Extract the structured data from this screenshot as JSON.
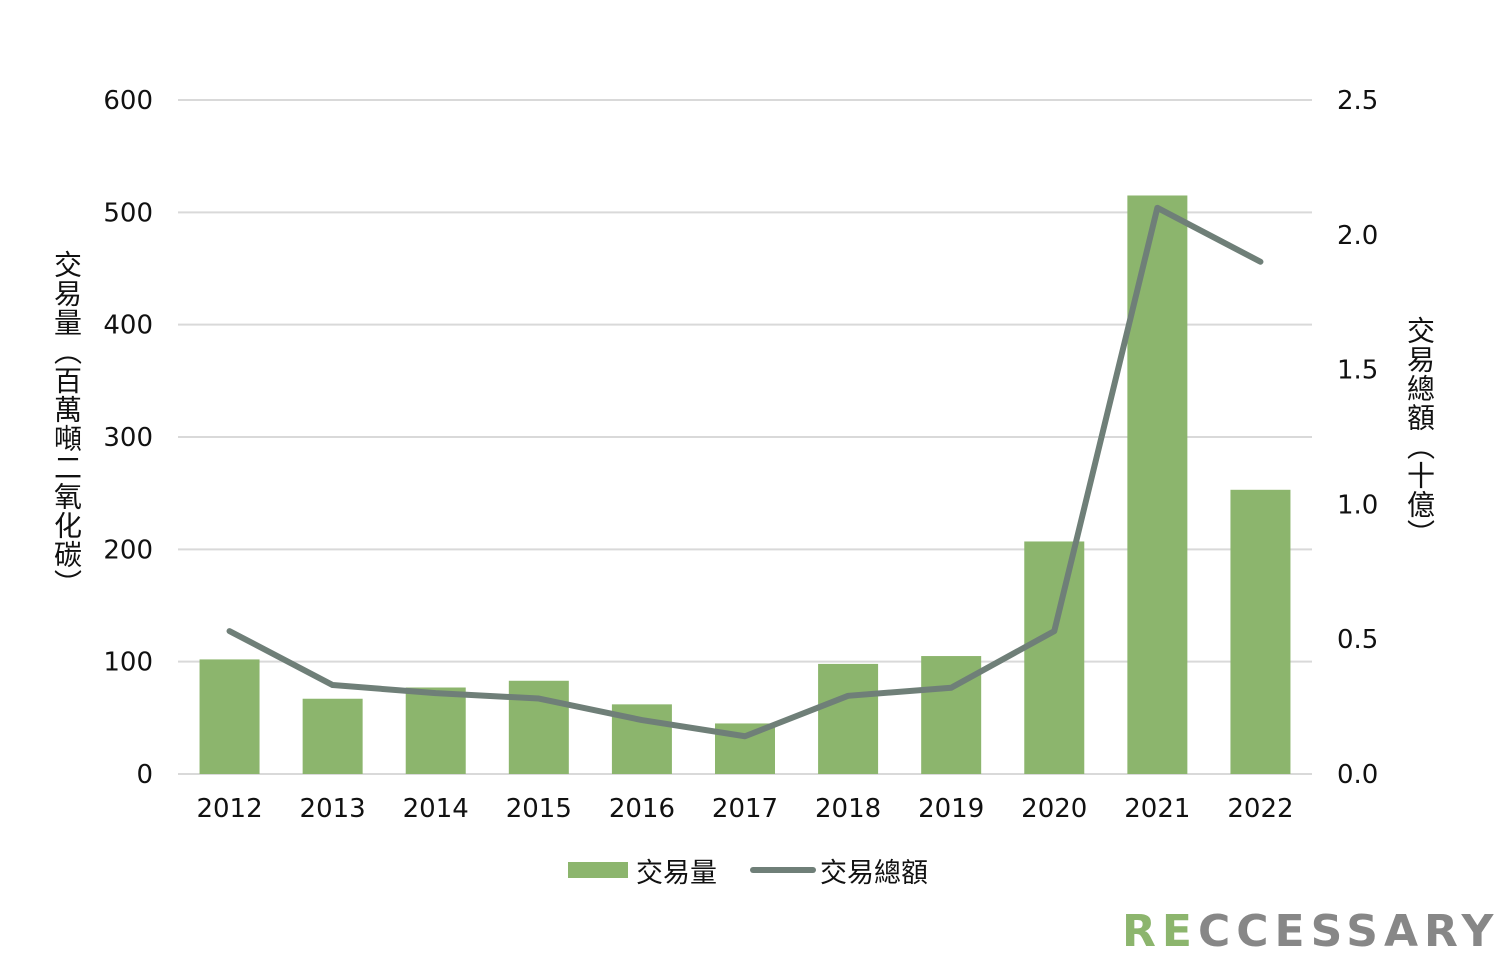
{
  "chart_data": {
    "type": "bar+line",
    "categories": [
      "2012",
      "2013",
      "2014",
      "2015",
      "2016",
      "2017",
      "2018",
      "2019",
      "2020",
      "2021",
      "2022"
    ],
    "series": [
      {
        "name": "交易量",
        "type": "bar",
        "axis": "left",
        "values": [
          102,
          67,
          77,
          83,
          62,
          45,
          98,
          105,
          207,
          515,
          253
        ],
        "color": "#8cb56d"
      },
      {
        "name": "交易總額",
        "type": "line",
        "axis": "right",
        "values": [
          0.53,
          0.33,
          0.3,
          0.28,
          0.2,
          0.14,
          0.29,
          0.32,
          0.53,
          2.1,
          1.9
        ],
        "color": "#6f7f78"
      }
    ],
    "ylabel_left": "交易量（百萬噸二氧化碳）",
    "ylabel_right": "交易總額（十億）",
    "ylim_left": [
      0,
      600
    ],
    "ylim_right": [
      0,
      2.5
    ],
    "yticks_left": [
      "0",
      "100",
      "200",
      "300",
      "400",
      "500",
      "600"
    ],
    "yticks_right": [
      "0.0",
      "0.5",
      "1.0",
      "1.5",
      "2.0",
      "2.5"
    ],
    "grid": true,
    "legend_position": "bottom"
  },
  "brand": {
    "logo_green": "RE",
    "logo_gray": "CCESSARY"
  }
}
